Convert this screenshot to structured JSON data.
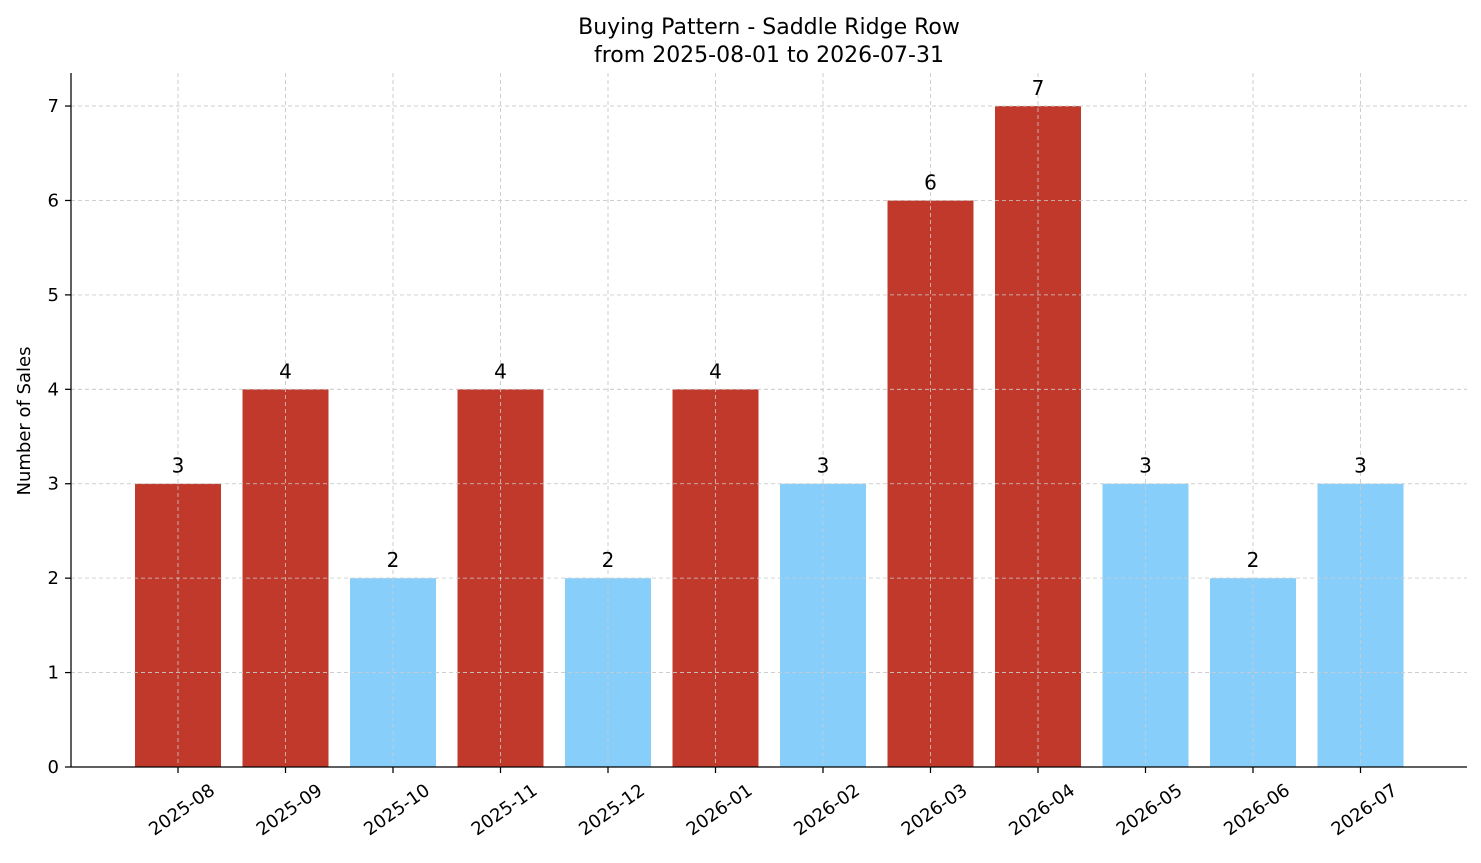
{
  "chart_data": {
    "type": "bar",
    "title": "Buying Pattern - Saddle Ridge Row",
    "subtitle": "from 2025-08-01 to 2026-07-31",
    "xlabel": "",
    "ylabel": "Number of Sales",
    "categories": [
      "2025-08",
      "2025-09",
      "2025-10",
      "2025-11",
      "2025-12",
      "2026-01",
      "2026-02",
      "2026-03",
      "2026-04",
      "2026-05",
      "2026-06",
      "2026-07"
    ],
    "values": [
      3,
      4,
      2,
      4,
      2,
      4,
      3,
      6,
      7,
      3,
      2,
      3
    ],
    "bar_colors": [
      "#c0392b",
      "#c0392b",
      "#87cefa",
      "#c0392b",
      "#87cefa",
      "#c0392b",
      "#87cefa",
      "#c0392b",
      "#c0392b",
      "#87cefa",
      "#87cefa",
      "#87cefa"
    ],
    "ylim": [
      0,
      7.35
    ],
    "yticks": [
      0,
      1,
      2,
      3,
      4,
      5,
      6,
      7
    ],
    "grid": true,
    "legend": "none"
  }
}
